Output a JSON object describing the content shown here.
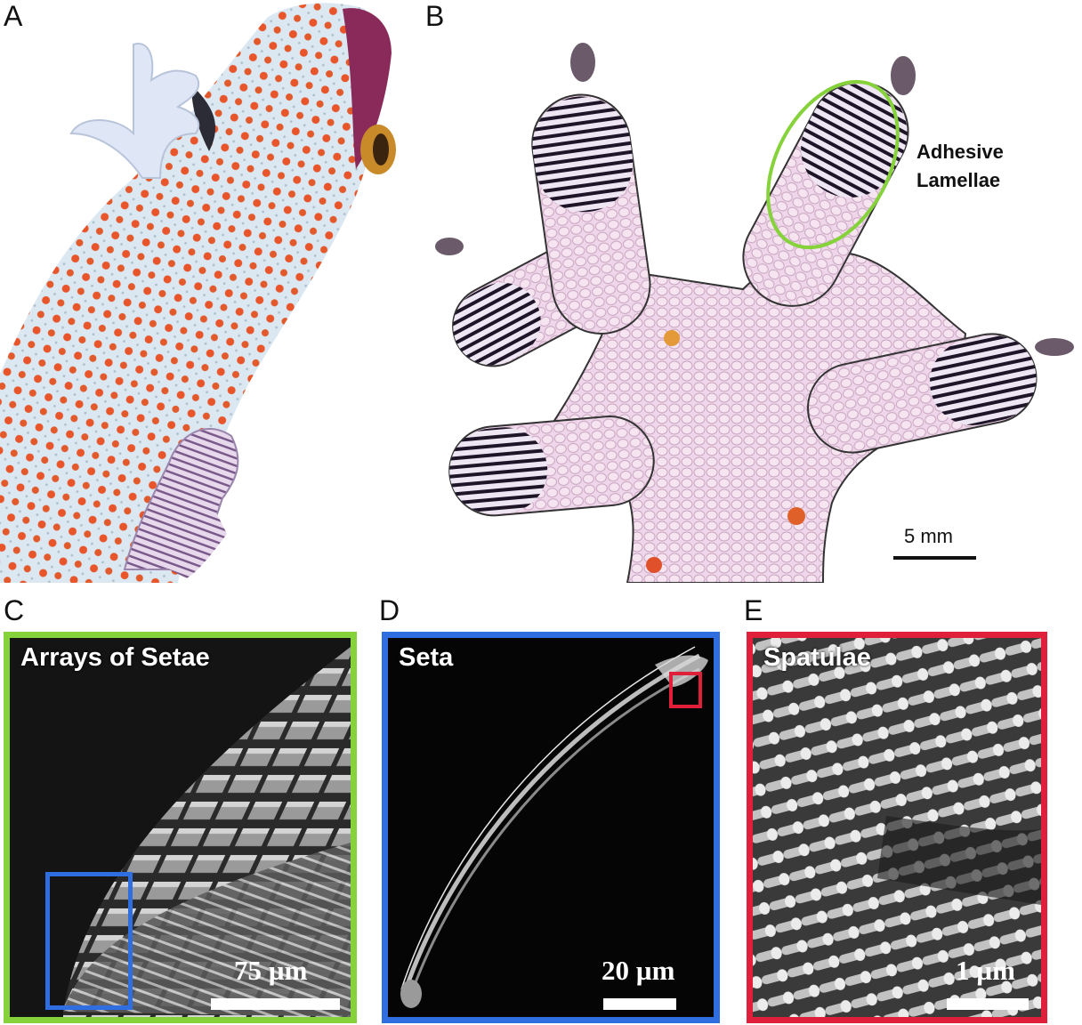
{
  "panels": {
    "a": {
      "letter": "A"
    },
    "b": {
      "letter": "B",
      "annotation_line1": "Adhesive",
      "annotation_line2": "Lamellae",
      "scale_label": "5 mm"
    },
    "c": {
      "letter": "C",
      "title": "Arrays of Setae",
      "scale_label": "75 µm"
    },
    "d": {
      "letter": "D",
      "title": "Seta",
      "scale_label": "20 µm"
    },
    "e": {
      "letter": "E",
      "title": "Spatulae",
      "scale_label": "1 µm"
    }
  },
  "colors": {
    "green_frame": "#86d23a",
    "blue_frame": "#2e6ee0",
    "red_frame": "#e0203a",
    "gecko_spot": "#e8552a",
    "gecko_skin": "#d8e6f0",
    "foot_pink": "#e9c3dc"
  }
}
